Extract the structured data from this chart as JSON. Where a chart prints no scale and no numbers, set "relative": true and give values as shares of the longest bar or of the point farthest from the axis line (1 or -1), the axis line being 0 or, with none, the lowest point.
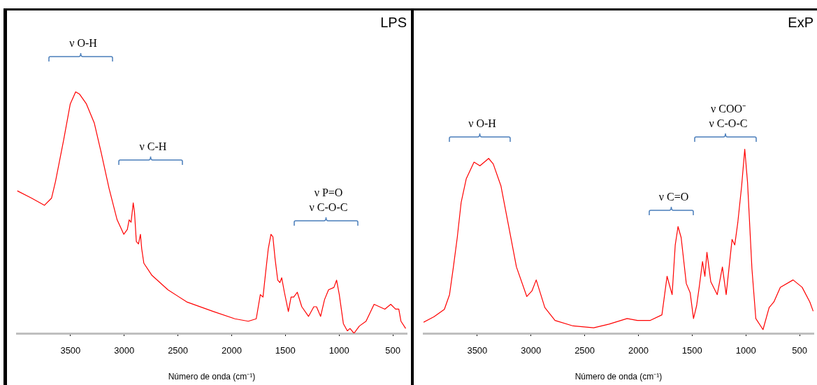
{
  "chart_data": [
    {
      "type": "line",
      "title": "LPS",
      "xlabel": "Número de onda (cm⁻¹)",
      "relative": true,
      "grid": false,
      "legend": false,
      "marker": "none",
      "line_style": "solid",
      "xlim": [
        4000,
        370
      ],
      "xticks": [
        3500,
        3000,
        2500,
        2000,
        1500,
        1000,
        500
      ],
      "series": [
        {
          "color": "#ff0000",
          "x": [
            3995,
            3863,
            3743,
            3676,
            3639,
            3564,
            3502,
            3452,
            3415,
            3352,
            3278,
            3215,
            3141,
            3066,
            3004,
            2971,
            2954,
            2936,
            2916,
            2904,
            2887,
            2867,
            2849,
            2837,
            2817,
            2742,
            2593,
            2418,
            2169,
            1970,
            1845,
            1771,
            1733,
            1708,
            1684,
            1659,
            1634,
            1616,
            1596,
            1571,
            1551,
            1534,
            1509,
            1472,
            1447,
            1422,
            1389,
            1347,
            1284,
            1235,
            1210,
            1172,
            1135,
            1098,
            1048,
            1023,
            998,
            960,
            923,
            898,
            861,
            811,
            749,
            674,
            574,
            519,
            474,
            444,
            424,
            380
          ],
          "values": [
            0.59,
            0.56,
            0.53,
            0.56,
            0.63,
            0.8,
            0.95,
            1,
            0.99,
            0.95,
            0.87,
            0.75,
            0.6,
            0.47,
            0.41,
            0.43,
            0.47,
            0.46,
            0.54,
            0.5,
            0.38,
            0.37,
            0.41,
            0.35,
            0.29,
            0.24,
            0.18,
            0.13,
            0.09,
            0.06,
            0.05,
            0.06,
            0.16,
            0.15,
            0.25,
            0.35,
            0.41,
            0.4,
            0.31,
            0.22,
            0.21,
            0.23,
            0.17,
            0.09,
            0.15,
            0.15,
            0.17,
            0.11,
            0.07,
            0.11,
            0.11,
            0.07,
            0.14,
            0.18,
            0.19,
            0.22,
            0.16,
            0.04,
            0.01,
            0.02,
            0,
            0.03,
            0.05,
            0.12,
            0.1,
            0.12,
            0.1,
            0.1,
            0.05,
            0.02
          ]
        }
      ],
      "annotations": [
        "ν O-H",
        "ν C-H",
        "ν P=O\nν C-O-C"
      ]
    },
    {
      "type": "line",
      "title": "ExP",
      "xlabel": "Número de onda (cm⁻¹)",
      "relative": true,
      "grid": false,
      "legend": false,
      "marker": "none",
      "line_style": "solid",
      "xlim": [
        4000,
        370
      ],
      "xticks": [
        3500,
        3000,
        2500,
        2000,
        1500,
        1000,
        500
      ],
      "series": [
        {
          "color": "#ff0000",
          "x": [
            4000,
            3902,
            3806,
            3758,
            3722,
            3686,
            3650,
            3602,
            3530,
            3475,
            3434,
            3394,
            3351,
            3279,
            3207,
            3135,
            3039,
            2991,
            2951,
            2871,
            2776,
            2608,
            2416,
            2273,
            2105,
            2009,
            1889,
            1781,
            1733,
            1710,
            1686,
            1657,
            1631,
            1602,
            1554,
            1518,
            1487,
            1458,
            1434,
            1403,
            1381,
            1362,
            1326,
            1266,
            1218,
            1183,
            1128,
            1103,
            1075,
            1039,
            1010,
            984,
            943,
            907,
            840,
            783,
            739,
            679,
            560,
            476,
            404,
            373
          ],
          "values": [
            0.06,
            0.09,
            0.13,
            0.21,
            0.36,
            0.52,
            0.71,
            0.84,
            0.93,
            0.91,
            0.93,
            0.95,
            0.92,
            0.8,
            0.58,
            0.36,
            0.2,
            0.23,
            0.29,
            0.14,
            0.07,
            0.04,
            0.03,
            0.05,
            0.08,
            0.07,
            0.07,
            0.1,
            0.31,
            0.26,
            0.21,
            0.48,
            0.58,
            0.52,
            0.27,
            0.22,
            0.08,
            0.15,
            0.25,
            0.39,
            0.31,
            0.44,
            0.28,
            0.21,
            0.36,
            0.21,
            0.51,
            0.48,
            0.6,
            0.8,
            1,
            0.82,
            0.35,
            0.08,
            0.02,
            0.14,
            0.17,
            0.25,
            0.29,
            0.25,
            0.17,
            0.12
          ]
        }
      ],
      "annotations": [
        "ν O-H",
        "ν C=O",
        "ν COO⁻\nν C-O-C"
      ]
    }
  ]
}
